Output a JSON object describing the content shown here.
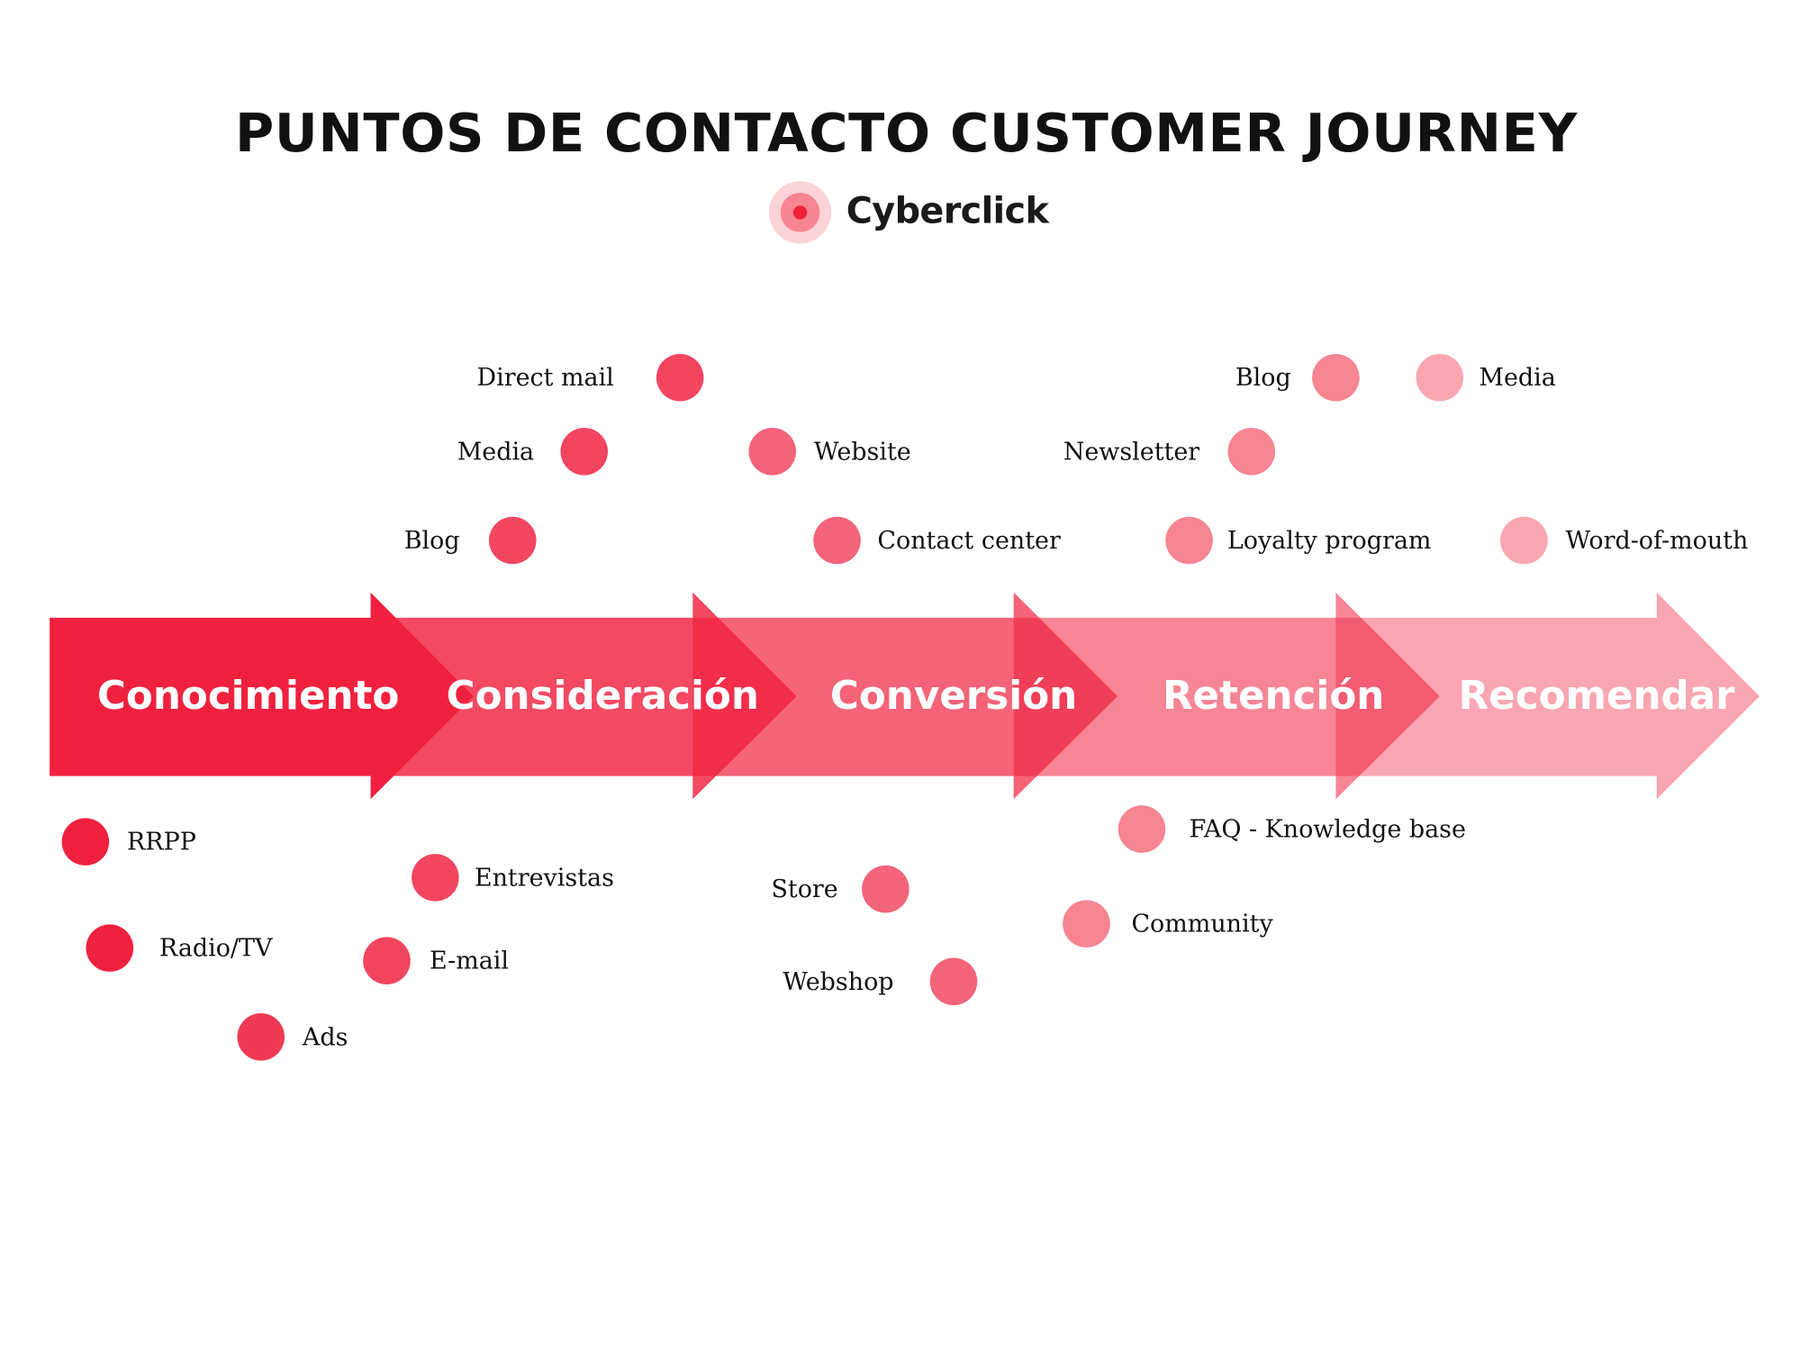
{
  "title": "PUNTOS DE CONTACTO CUSTOMER JOURNEY",
  "brand": {
    "name": "Cyberclick",
    "logo_icon": "target-rings-icon"
  },
  "colors": {
    "conocimiento": "#F0213F",
    "consideracion": "#F24560",
    "conversion": "#F4647A",
    "retencion": "#F78592",
    "recomendar": "#F9A6B0"
  },
  "stages": [
    {
      "label": "Conocimiento"
    },
    {
      "label": "Consideración"
    },
    {
      "label": "Conversión"
    },
    {
      "label": "Retención"
    },
    {
      "label": "Recomendar"
    }
  ],
  "touchpoints": {
    "conocimiento": [
      "RRPP",
      "Radio/TV",
      "Ads"
    ],
    "consideracion": [
      "Direct mail",
      "Media",
      "Blog",
      "Entrevistas",
      "E-mail"
    ],
    "conversion": [
      "Website",
      "Contact center",
      "Store",
      "Webshop"
    ],
    "retencion": [
      "Blog",
      "Newsletter",
      "Loyalty program",
      "FAQ - Knowledge base",
      "Community"
    ],
    "recomendar": [
      "Media",
      "Word-of-mouth"
    ]
  }
}
